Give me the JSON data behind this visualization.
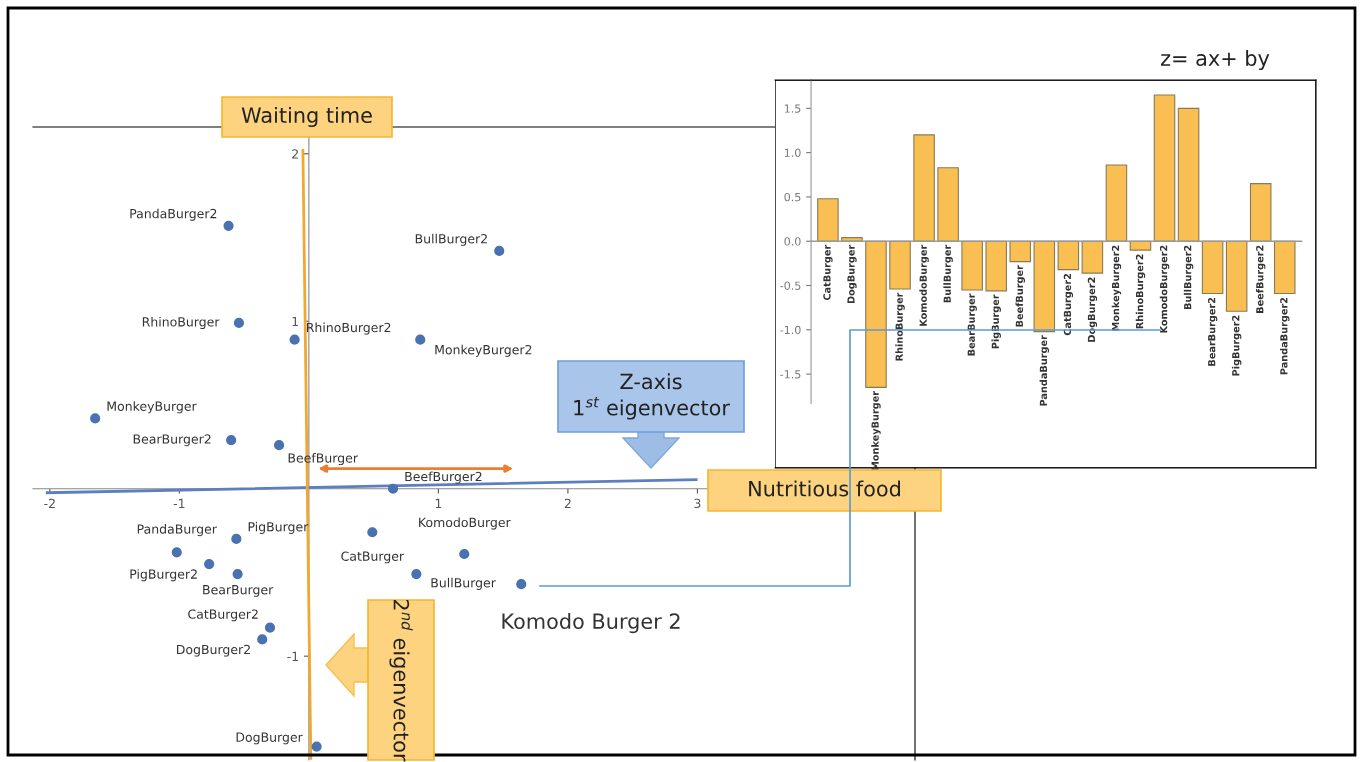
{
  "chart_data": [
    {
      "type": "scatter",
      "xlabel": "Nutritious food",
      "ylabel": "Waiting time",
      "xlim": [
        -2.13,
        4.68
      ],
      "ylim": [
        -1.62,
        2.16
      ],
      "xticks": [
        -2,
        -1,
        1,
        2,
        3
      ],
      "yticks": [
        -1,
        1,
        2
      ],
      "series": [
        {
          "type": "scatter",
          "color": "#4a72b0",
          "x": [
            -0.62,
            1.47,
            -0.54,
            -0.11,
            0.86,
            -1.65,
            -0.6,
            -0.23,
            0.65,
            -1.02,
            -0.56,
            0.49,
            1.2,
            -0.77,
            -0.55,
            0.83,
            1.64,
            -0.3,
            -0.36,
            0.06
          ],
          "values": [
            1.57,
            1.42,
            0.99,
            0.89,
            0.89,
            0.42,
            0.29,
            0.26,
            0.0,
            -0.38,
            -0.3,
            -0.26,
            -0.39,
            -0.45,
            -0.51,
            -0.51,
            -0.57,
            -0.83,
            -0.9,
            -1.54
          ],
          "value_labels": [
            "PandaBurger2",
            "BullBurger2",
            "RhinoBurger",
            "RhinoBurger2",
            "MonkeyBurger2",
            "MonkeyBurger",
            "BearBurger2",
            "BeefBurger",
            "BeefBurger2",
            "PandaBurger",
            "PigBurger",
            "CatBurger",
            "KomodoBurger",
            "PigBurger2",
            "BearBurger",
            "BullBurger",
            null,
            "CatBurger2",
            "DogBurger2",
            "DogBurger"
          ]
        },
        {
          "type": "line",
          "color": "#5b7fc0",
          "x": [
            -2.02,
            2.99
          ],
          "values": [
            -0.024,
            0.054
          ]
        },
        {
          "type": "line",
          "color": "#f0a830",
          "x": [
            -0.046,
            0.015
          ],
          "values": [
            2.02,
            -1.61
          ]
        }
      ],
      "annotations": [
        "Z-axis\n1$^{st}$ eigenvector",
        "2$^{nd}$ eigenvector",
        {
          "text": "Komodo Burger 2",
          "x": 1.64,
          "y": -0.57
        }
      ]
    },
    {
      "type": "bar",
      "title": "z= ax+ by",
      "color": "#f9bf52",
      "categories": [
        "CatBurger",
        "DogBurger",
        "MonkeyBurger",
        "RhinoBurger",
        "KomodoBurger",
        "BullBurger",
        "BearBurger",
        "PigBurger",
        "BeefBurger",
        "PandaBurger",
        "CatBurger2",
        "DogBurger2",
        "MonkeyBurger2",
        "RhinoBurger2",
        "KomodoBurger2",
        "BullBurger2",
        "BearBurger2",
        "PigBurger2",
        "BeefBurger2",
        "PandaBurger2"
      ],
      "values": [
        0.48,
        0.04,
        -1.65,
        -0.54,
        1.2,
        0.83,
        -0.55,
        -0.56,
        -0.23,
        -1.02,
        -0.32,
        -0.36,
        0.86,
        -0.1,
        1.65,
        1.5,
        -0.59,
        -0.79,
        0.65,
        -0.59
      ],
      "ylim": [
        -2.56,
        1.82
      ],
      "yticks": [
        {
          "value": -1.5,
          "label": "-1.5"
        },
        {
          "value": -1.0,
          "label": "-1.0"
        },
        {
          "value": -0.5,
          "label": "-0.5"
        },
        {
          "value": 0.0,
          "label": "0.0"
        },
        {
          "value": 0.5,
          "label": "0.5"
        },
        {
          "value": 1.0,
          "label": "1.0"
        },
        {
          "value": 1.5,
          "label": "1.5"
        }
      ]
    }
  ]
}
